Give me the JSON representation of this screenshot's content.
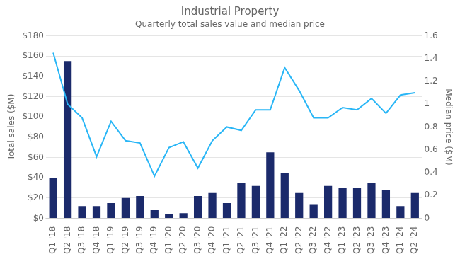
{
  "chart_data": {
    "type": "bar",
    "title": "Industrial Property",
    "subtitle": "Quarterly total sales value and median price",
    "ylabel": "Total sales ($M)",
    "y2label": "Median price ($M)",
    "categories": [
      "Q1 '18",
      "Q2 '18",
      "Q3 '18",
      "Q4 '18",
      "Q1 '19",
      "Q2 '19",
      "Q3 '19",
      "Q4 '19",
      "Q1 '20",
      "Q2 '20",
      "Q3 '20",
      "Q4 '20",
      "Q1 '21",
      "Q2 '21",
      "Q3 '21",
      "Q4 '21",
      "Q1 '22",
      "Q2 '22",
      "Q3 '22",
      "Q4 '22",
      "Q1 '23",
      "Q2 '23",
      "Q3 '23",
      "Q4 '23",
      "Q1 '24",
      "Q2 '24"
    ],
    "series": [
      {
        "type": "bar",
        "color": "#1b2a6b",
        "values": [
          40,
          155,
          12,
          12,
          15,
          20,
          22,
          8,
          4,
          5,
          22,
          25,
          15,
          35,
          32,
          65,
          45,
          25,
          14,
          32,
          30,
          30,
          35,
          28,
          12,
          25
        ]
      },
      {
        "type": "line",
        "color": "#29b6f6",
        "axis": "y2",
        "values": [
          1.45,
          1.0,
          0.88,
          0.54,
          0.85,
          0.68,
          0.66,
          0.37,
          0.62,
          0.67,
          0.44,
          0.68,
          0.8,
          0.77,
          0.95,
          0.95,
          1.32,
          1.12,
          0.88,
          0.88,
          0.97,
          0.95,
          1.05,
          0.92,
          1.08,
          1.1
        ]
      }
    ],
    "ylim": [
      0,
      180
    ],
    "yticks": [
      {
        "value": 0,
        "label": "$0"
      },
      {
        "value": 20,
        "label": "$20"
      },
      {
        "value": 40,
        "label": "$40"
      },
      {
        "value": 60,
        "label": "$60"
      },
      {
        "value": 80,
        "label": "$80"
      },
      {
        "value": 100,
        "label": "$100"
      },
      {
        "value": 120,
        "label": "$120"
      },
      {
        "value": 140,
        "label": "$140"
      },
      {
        "value": 160,
        "label": "$160"
      },
      {
        "value": 180,
        "label": "$180"
      }
    ],
    "y2lim": [
      0,
      1.6
    ],
    "y2ticks": [
      0,
      0.2,
      0.4,
      0.6,
      0.8,
      1,
      1.2,
      1.4,
      1.6
    ],
    "grid": true
  }
}
